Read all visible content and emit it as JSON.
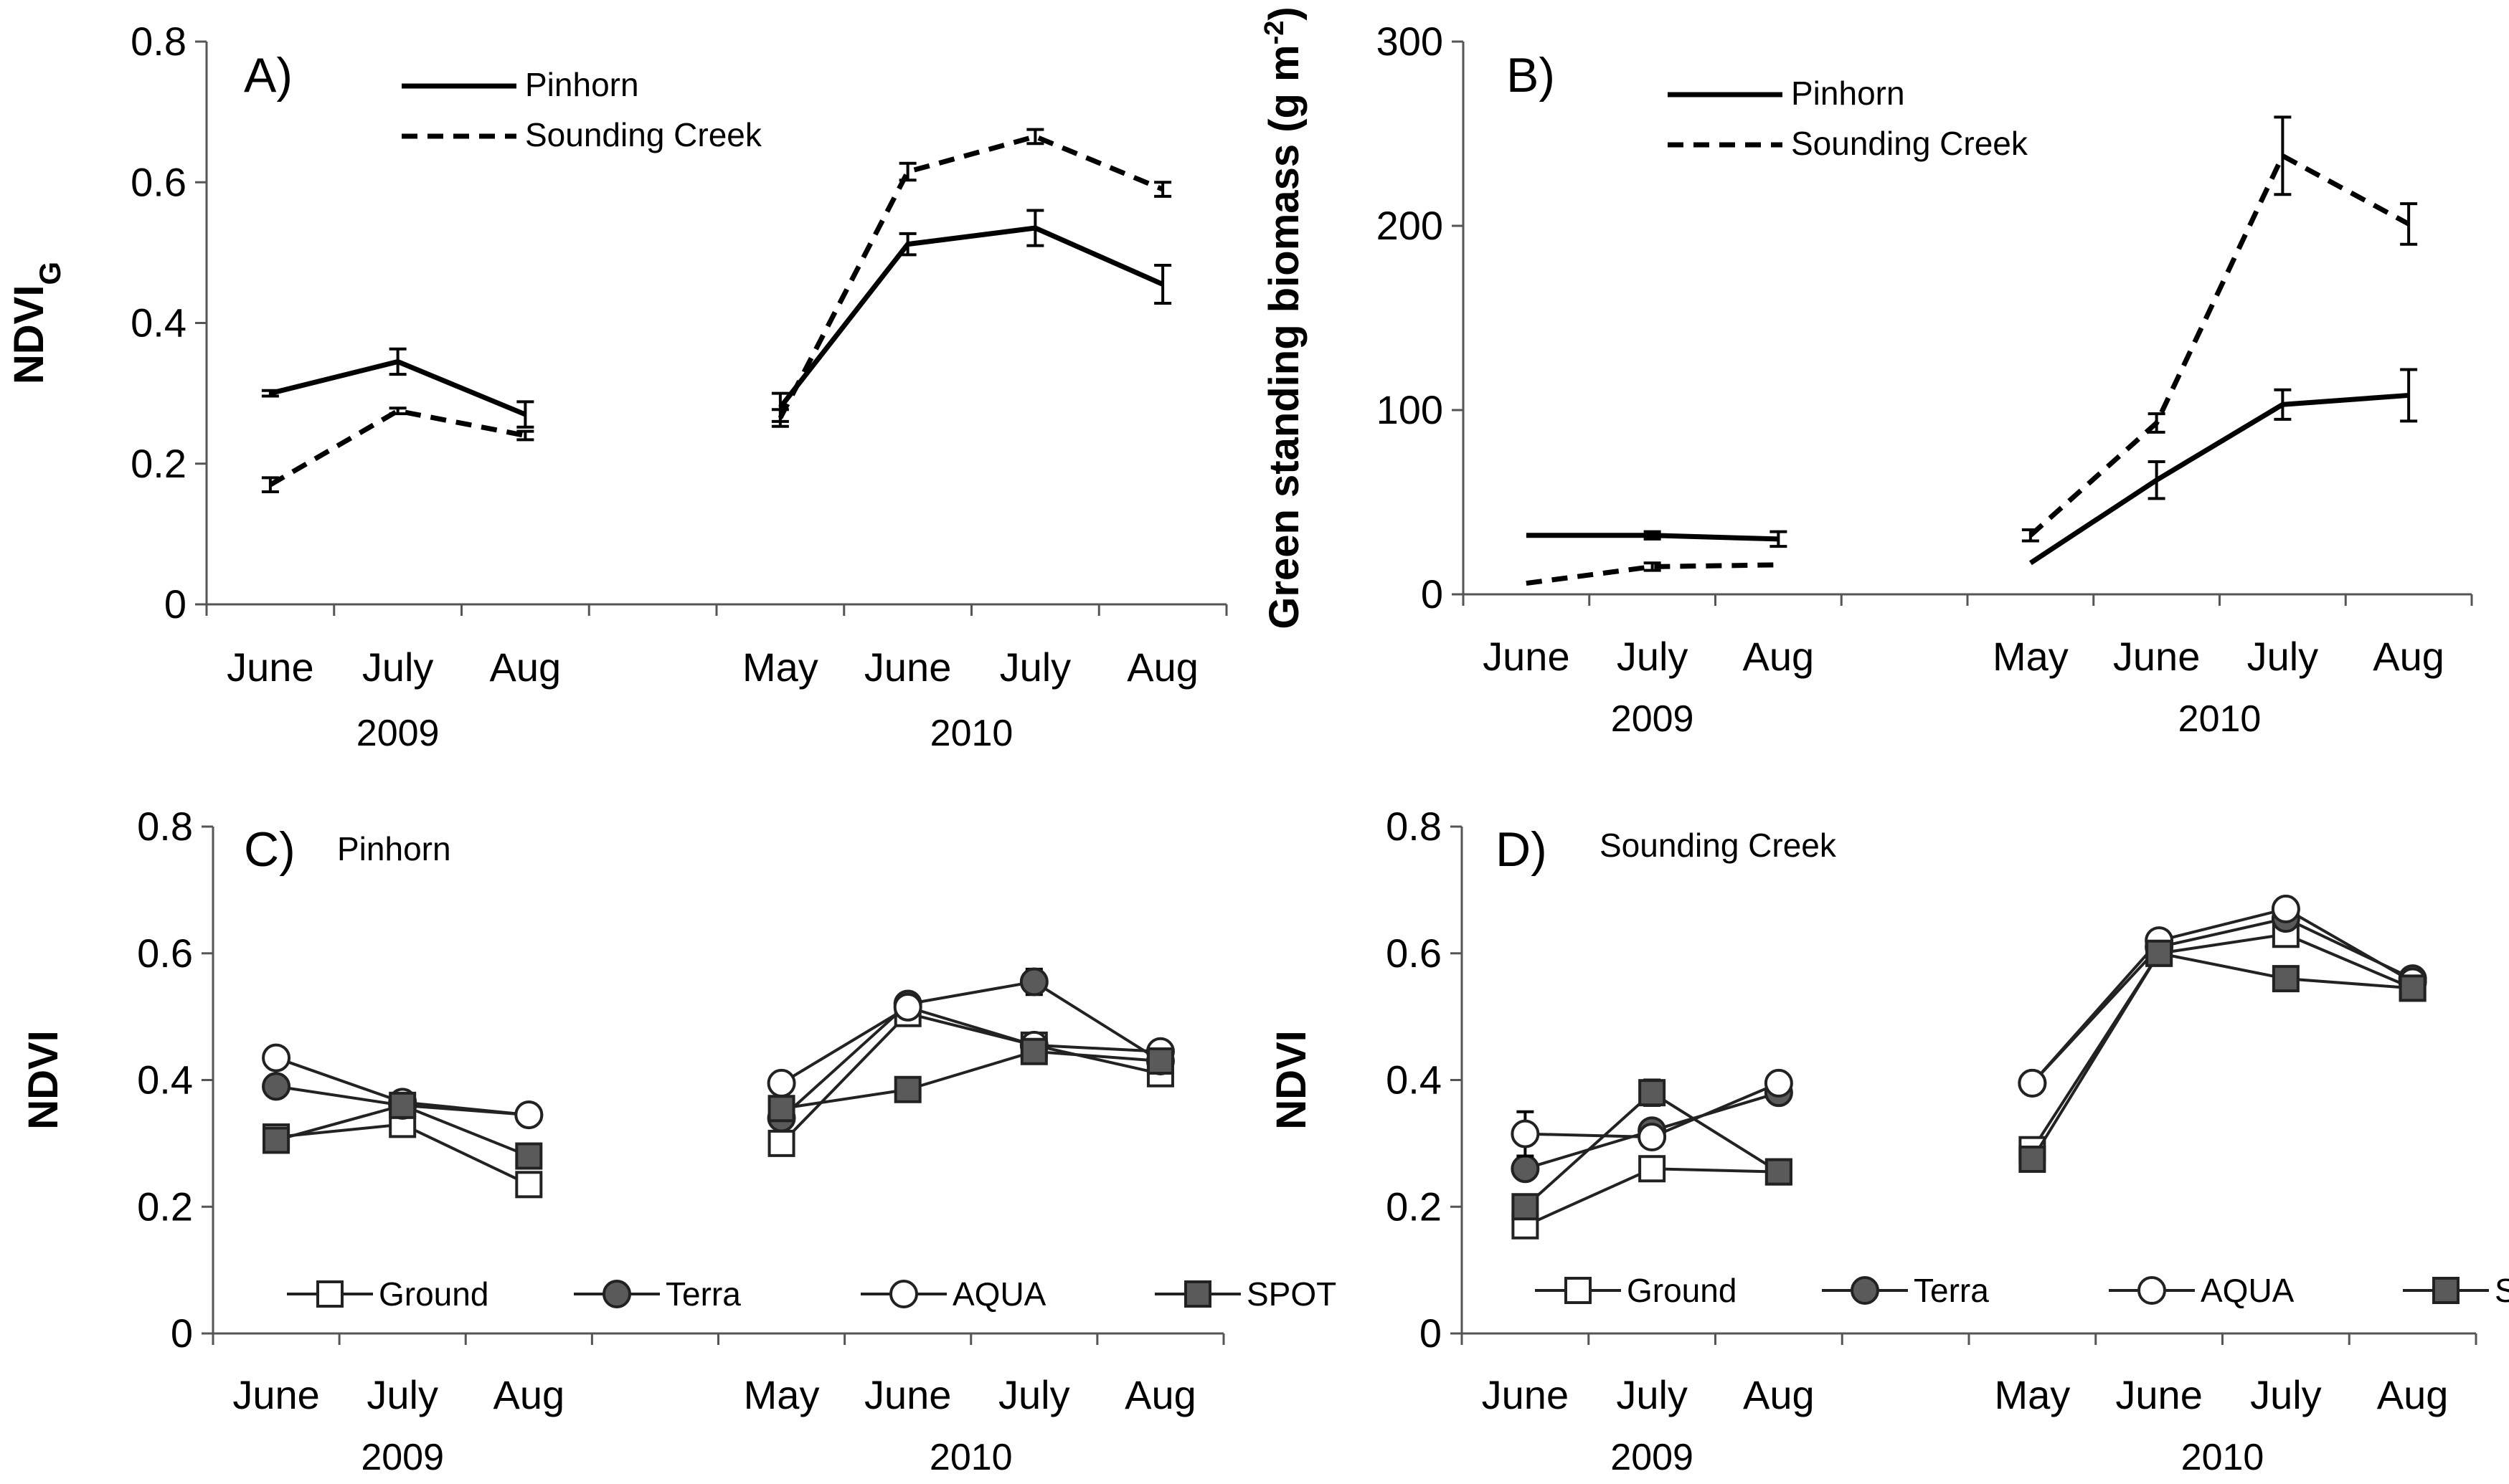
{
  "chart_data": [
    {
      "id": "A",
      "type": "line",
      "panel_label": "A)",
      "title": "",
      "ylabel": "NDVI",
      "ylabel_sub": "G",
      "ylim": [
        0,
        0.8
      ],
      "yticks": [
        0,
        0.2,
        0.4,
        0.6,
        0.8
      ],
      "ytick_labels": [
        "0",
        "0.2",
        "0.4",
        "0.6",
        "0.8"
      ],
      "categories": [
        "June",
        "July",
        "Aug",
        "",
        "May",
        "June",
        "July",
        "Aug"
      ],
      "years": [
        {
          "label": "2009",
          "center": 1
        },
        {
          "label": "2010",
          "center": 5.5
        }
      ],
      "series": [
        {
          "name": "Pinhorn",
          "style": "solid",
          "segments": [
            [
              0,
              2
            ],
            [
              4,
              7
            ]
          ],
          "values": [
            0.3,
            0.345,
            0.27,
            null,
            0.28,
            0.512,
            0.535,
            0.455
          ],
          "errors": [
            0.004,
            0.018,
            0.018,
            null,
            0.02,
            0.015,
            0.025,
            0.027
          ]
        },
        {
          "name": "Sounding Creek",
          "style": "dashed",
          "segments": [
            [
              0,
              2
            ],
            [
              4,
              7
            ]
          ],
          "values": [
            0.17,
            0.275,
            0.24,
            null,
            0.265,
            0.615,
            0.665,
            0.59
          ],
          "errors": [
            0.01,
            0.004,
            0.006,
            null,
            0.012,
            0.012,
            0.01,
            0.01
          ]
        }
      ]
    },
    {
      "id": "B",
      "type": "line",
      "panel_label": "B)",
      "title": "",
      "ylabel": "Green standing biomass (g m",
      "ylabel_sup": "-2",
      "ylabel_close": ")",
      "ylim": [
        0,
        300
      ],
      "yticks": [
        0,
        100,
        200,
        300
      ],
      "ytick_labels": [
        "0",
        "100",
        "200",
        "300"
      ],
      "categories": [
        "June",
        "July",
        "Aug",
        "",
        "May",
        "June",
        "July",
        "Aug"
      ],
      "years": [
        {
          "label": "2009",
          "center": 1
        },
        {
          "label": "2010",
          "center": 5.5
        }
      ],
      "series": [
        {
          "name": "Pinhorn",
          "style": "solid",
          "segments": [
            [
              0,
              2
            ],
            [
              4,
              7
            ]
          ],
          "values": [
            32,
            32,
            30,
            null,
            17,
            62,
            103,
            108
          ],
          "errors": [
            1,
            2,
            4,
            null,
            1,
            10,
            8,
            14
          ]
        },
        {
          "name": "Sounding Creek",
          "style": "dashed",
          "segments": [
            [
              0,
              2
            ],
            [
              4,
              7
            ]
          ],
          "values": [
            6,
            15,
            16,
            null,
            32,
            93,
            238,
            201
          ],
          "errors": [
            1,
            2,
            1,
            null,
            3,
            5,
            21,
            11
          ]
        }
      ]
    },
    {
      "id": "C",
      "type": "line",
      "panel_label": "C)",
      "site": "Pinhorn",
      "title": "",
      "ylabel": "NDVI",
      "ylim": [
        0,
        0.8
      ],
      "yticks": [
        0,
        0.2,
        0.4,
        0.6,
        0.8
      ],
      "ytick_labels": [
        "0",
        "0.2",
        "0.4",
        "0.6",
        "0.8"
      ],
      "categories": [
        "June",
        "July",
        "Aug",
        "",
        "May",
        "June",
        "July",
        "Aug"
      ],
      "years": [
        {
          "label": "2009",
          "center": 1
        },
        {
          "label": "2010",
          "center": 5.5
        }
      ],
      "series": [
        {
          "name": "Ground",
          "marker": "open-square",
          "segments": [
            [
              0,
              2
            ],
            [
              4,
              7
            ]
          ],
          "values": [
            0.31,
            0.33,
            0.235,
            null,
            0.3,
            0.505,
            0.455,
            0.41
          ],
          "errors": [
            0.005,
            0.005,
            0.005,
            null,
            0.005,
            0.005,
            0.005,
            0.005
          ]
        },
        {
          "name": "Terra",
          "marker": "filled-circle",
          "segments": [
            [
              0,
              2
            ],
            [
              4,
              7
            ]
          ],
          "values": [
            0.39,
            0.36,
            0.345,
            null,
            0.34,
            0.52,
            0.555,
            0.43
          ],
          "errors": [
            0.005,
            0.005,
            0.005,
            null,
            0.005,
            0.008,
            0.02,
            0.005
          ]
        },
        {
          "name": "AQUA",
          "marker": "open-circle",
          "segments": [
            [
              0,
              2
            ],
            [
              4,
              7
            ]
          ],
          "values": [
            0.435,
            0.365,
            0.345,
            null,
            0.395,
            0.515,
            0.455,
            0.445
          ],
          "errors": [
            0.005,
            0.005,
            0.005,
            null,
            0.005,
            0.005,
            0.005,
            0.005
          ]
        },
        {
          "name": "SPOT",
          "marker": "filled-square",
          "segments": [
            [
              0,
              2
            ],
            [
              4,
              7
            ]
          ],
          "values": [
            0.305,
            0.36,
            0.28,
            null,
            0.355,
            0.385,
            0.445,
            0.43
          ],
          "errors": [
            0.005,
            0.005,
            0.005,
            null,
            0.005,
            0.005,
            0.005,
            0.005
          ]
        }
      ]
    },
    {
      "id": "D",
      "type": "line",
      "panel_label": "D)",
      "site": "Sounding Creek",
      "title": "",
      "ylabel": "NDVI",
      "ylim": [
        0,
        0.8
      ],
      "yticks": [
        0,
        0.2,
        0.4,
        0.6,
        0.8
      ],
      "ytick_labels": [
        "0",
        "0.2",
        "0.4",
        "0.6",
        "0.8"
      ],
      "categories": [
        "June",
        "July",
        "Aug",
        "",
        "May",
        "June",
        "July",
        "Aug"
      ],
      "years": [
        {
          "label": "2009",
          "center": 1
        },
        {
          "label": "2010",
          "center": 5.5
        }
      ],
      "series": [
        {
          "name": "Ground",
          "marker": "open-square",
          "segments": [
            [
              0,
              2
            ],
            [
              4,
              7
            ]
          ],
          "values": [
            0.17,
            0.26,
            0.255,
            null,
            0.29,
            0.6,
            0.63,
            0.545
          ],
          "errors": [
            0.005,
            0.005,
            0.005,
            null,
            0.005,
            0.005,
            0.005,
            0.005
          ]
        },
        {
          "name": "Terra",
          "marker": "filled-circle",
          "segments": [
            [
              0,
              2
            ],
            [
              4,
              7
            ]
          ],
          "values": [
            0.26,
            0.32,
            0.38,
            null,
            0.395,
            0.61,
            0.655,
            0.56
          ],
          "errors": [
            0.005,
            0.005,
            0.005,
            null,
            0.005,
            0.005,
            0.005,
            0.005
          ]
        },
        {
          "name": "AQUA",
          "marker": "open-circle",
          "segments": [
            [
              0,
              2
            ],
            [
              4,
              7
            ]
          ],
          "values": [
            0.315,
            0.31,
            0.395,
            null,
            0.395,
            0.62,
            0.67,
            0.555
          ],
          "errors": [
            0.035,
            0.005,
            0.005,
            null,
            0.005,
            0.005,
            0.005,
            0.005
          ]
        },
        {
          "name": "SPOT",
          "marker": "filled-square",
          "segments": [
            [
              0,
              2
            ],
            [
              4,
              7
            ]
          ],
          "values": [
            0.2,
            0.38,
            0.255,
            null,
            0.275,
            0.6,
            0.56,
            0.545
          ],
          "errors": [
            0.005,
            0.02,
            0.005,
            null,
            0.005,
            0.005,
            0.005,
            0.005
          ]
        }
      ]
    }
  ]
}
